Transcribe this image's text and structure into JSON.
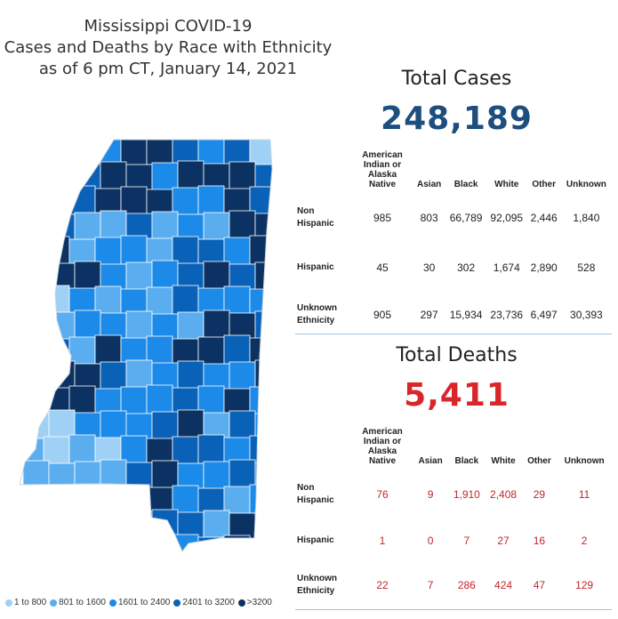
{
  "title": {
    "line1": "Mississippi COVID-19",
    "line2": "Cases and Deaths by Race with Ethnicity",
    "line3": "as of 6 pm CT, January 14, 2021"
  },
  "colors": {
    "lightest": "#9fd0f5",
    "light": "#5aaef0",
    "medium": "#1c8ae8",
    "dark": "#0a62b8",
    "darkest": "#0b3262",
    "cases_number": "#1c4e7e",
    "deaths_number": "#d9262a"
  },
  "legend": [
    {
      "label": "1 to 800",
      "color": "#9fd0f5"
    },
    {
      "label": "801 to 1600",
      "color": "#5aaef0"
    },
    {
      "label": "1601 to 2400",
      "color": "#1c8ae8"
    },
    {
      "label": "2401 to 3200",
      "color": "#0a62b8"
    },
    {
      "label": ">3200",
      "color": "#0b3262"
    }
  ],
  "cases": {
    "title": "Total Cases",
    "total": "248,189",
    "columns": [
      "American Indian or Alaska Native",
      "Asian",
      "Black",
      "White",
      "Other",
      "Unknown"
    ],
    "rows": [
      {
        "label": "Non Hispanic",
        "values": [
          "985",
          "803",
          "66,789",
          "92,095",
          "2,446",
          "1,840"
        ]
      },
      {
        "label": "Hispanic",
        "values": [
          "45",
          "30",
          "302",
          "1,674",
          "2,890",
          "528"
        ]
      },
      {
        "label": "Unknown Ethnicity",
        "values": [
          "905",
          "297",
          "15,934",
          "23,736",
          "6,497",
          "30,393"
        ]
      }
    ]
  },
  "deaths": {
    "title": "Total Deaths",
    "total": "5,411",
    "columns": [
      "American Indian or Alaska Native",
      "Asian",
      "Black",
      "White",
      "Other",
      "Unknown"
    ],
    "rows": [
      {
        "label": "Non Hispanic",
        "values": [
          "76",
          "9",
          "1,910",
          "2,408",
          "29",
          "11"
        ]
      },
      {
        "label": "Hispanic",
        "values": [
          "1",
          "0",
          "7",
          "27",
          "16",
          "2"
        ]
      },
      {
        "label": "Unknown Ethnicity",
        "values": [
          "22",
          "7",
          "286",
          "424",
          "47",
          "129"
        ]
      }
    ]
  }
}
